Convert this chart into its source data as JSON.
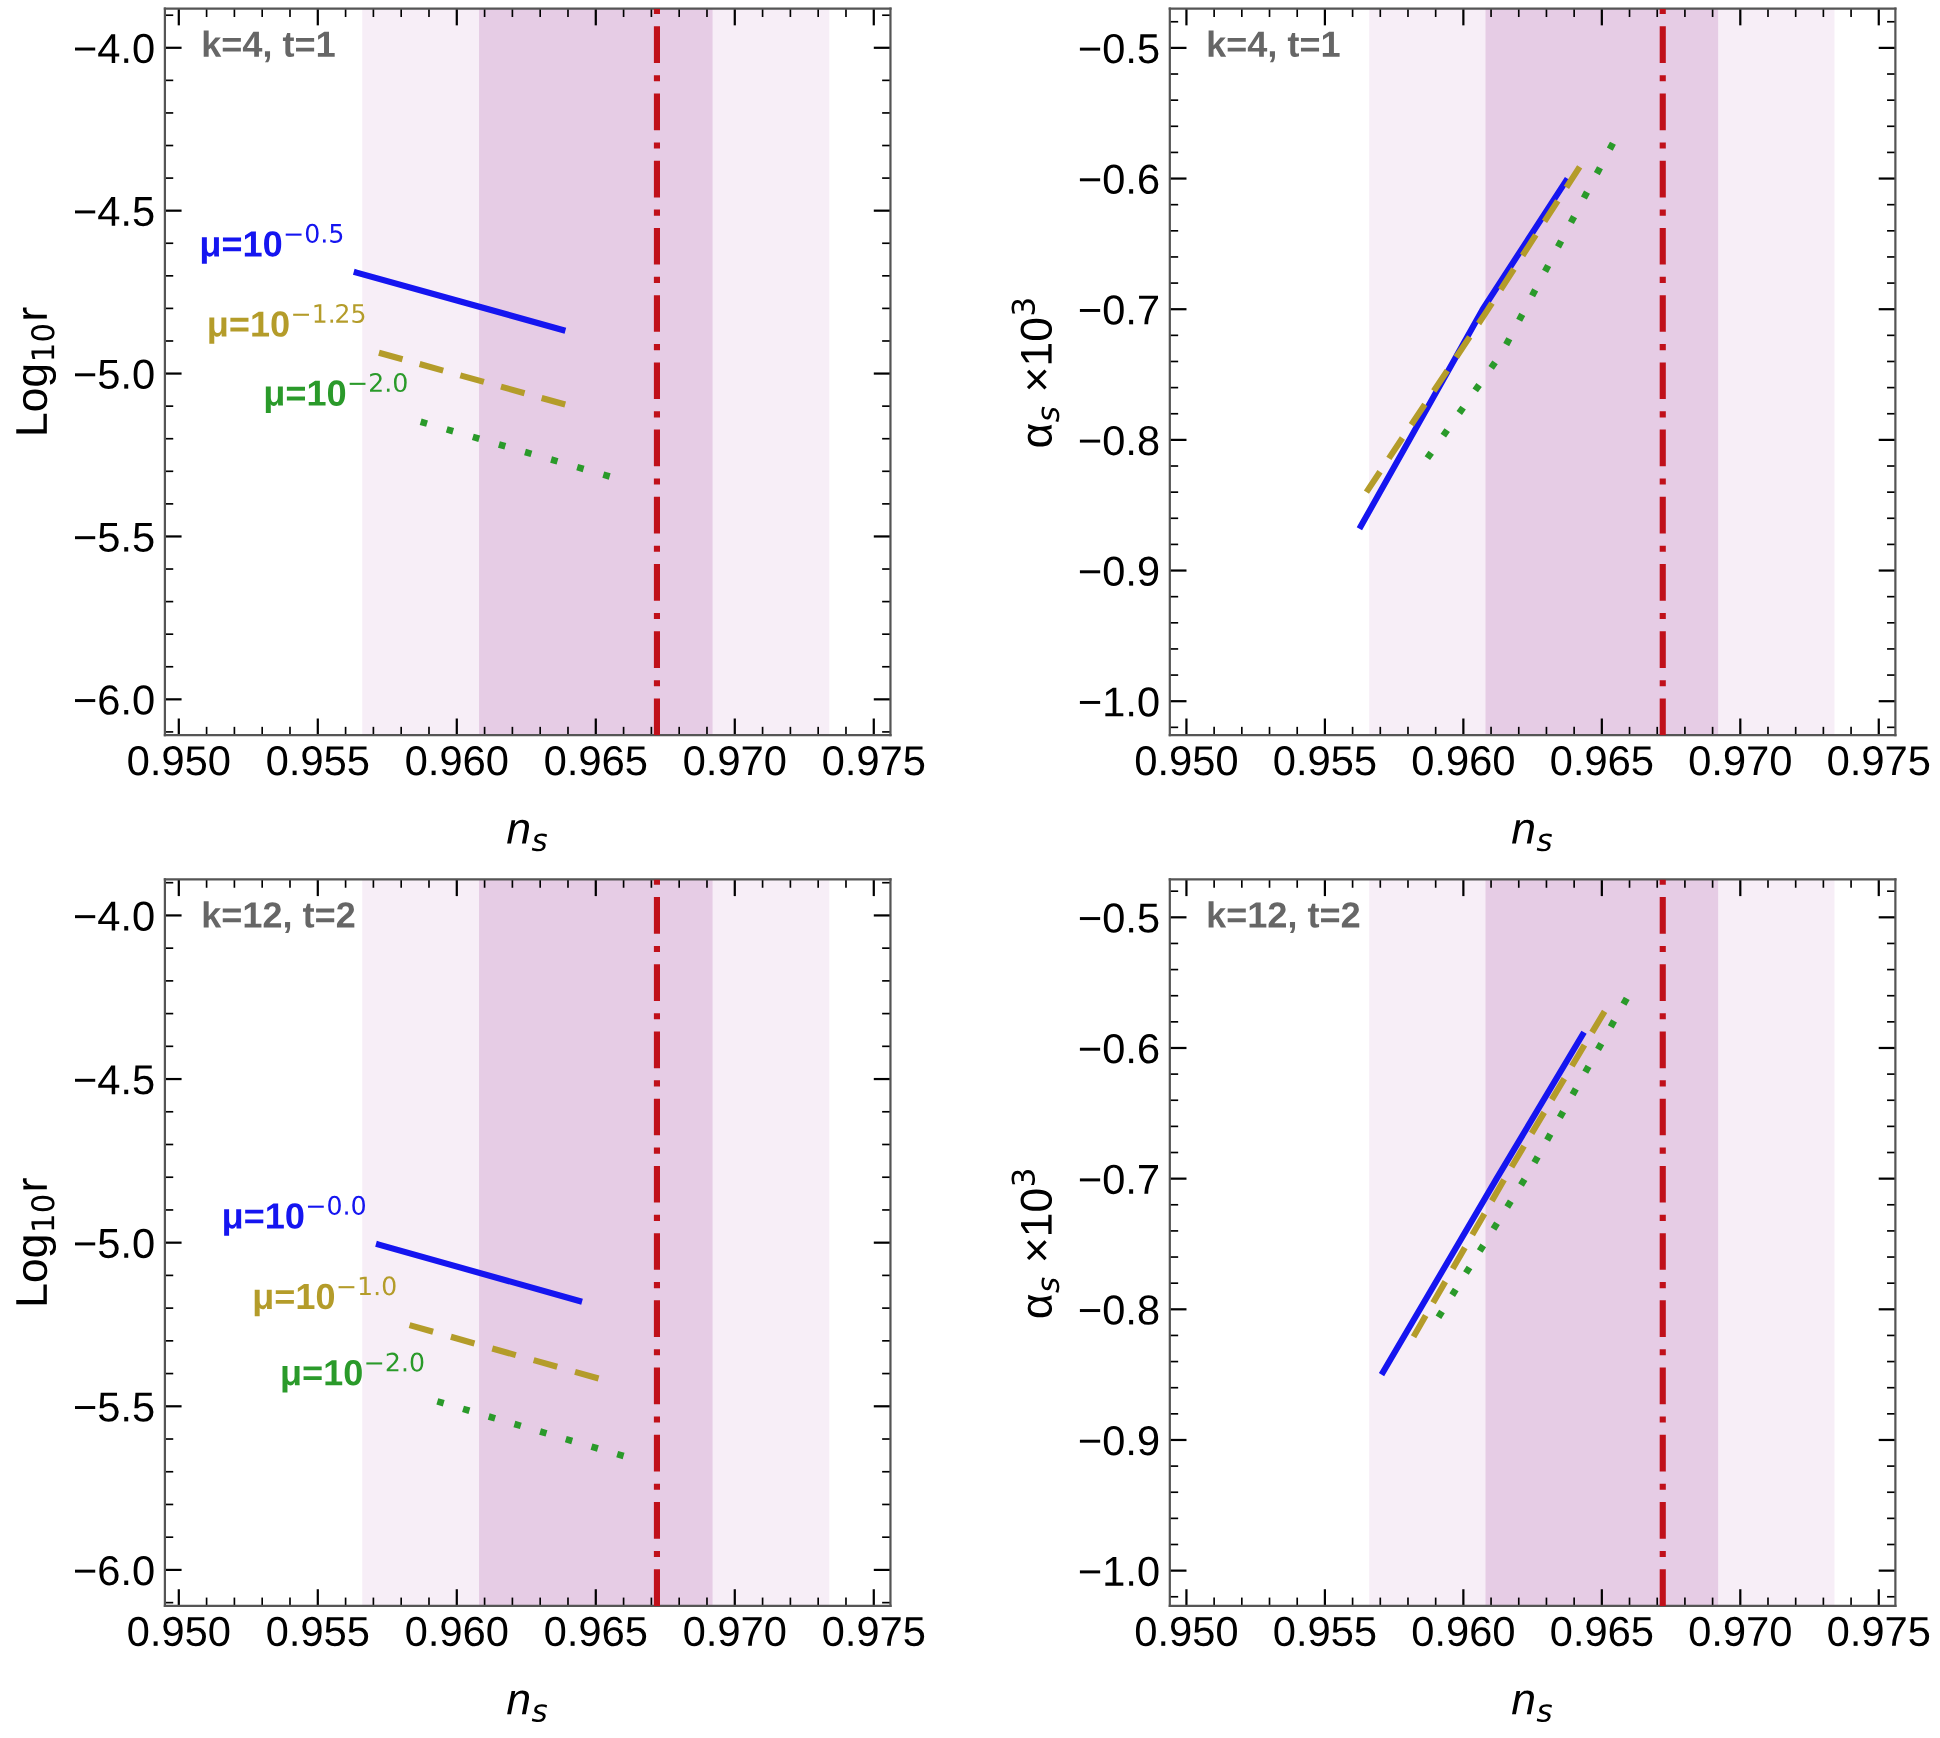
{
  "chart_data": [
    {
      "type": "line",
      "xlabel": "n$_{s}$",
      "ylabel": "Log$_{10}$r",
      "annotations": [
        "k=4, t=1"
      ],
      "xlim": [
        0.9495,
        0.9756
      ],
      "ylim": [
        -6.11,
        -3.88
      ],
      "xticks": [
        {
          "value": 0.95,
          "label": "0.950"
        },
        {
          "value": 0.955,
          "label": "0.955"
        },
        {
          "value": 0.96,
          "label": "0.960"
        },
        {
          "value": 0.965,
          "label": "0.965"
        },
        {
          "value": 0.97,
          "label": "0.970"
        },
        {
          "value": 0.975,
          "label": "0.975"
        }
      ],
      "yticks": [
        {
          "value": -4.0,
          "label": "−4.0"
        },
        {
          "value": -4.5,
          "label": "−4.5"
        },
        {
          "value": -5.0,
          "label": "−5.0"
        },
        {
          "value": -5.5,
          "label": "−5.5"
        },
        {
          "value": -6.0,
          "label": "−6.0"
        }
      ],
      "grid": false,
      "legend": false,
      "bands": [
        {
          "axis": "x",
          "from": 0.9566,
          "to": 0.9734,
          "color": "#f7eef7"
        },
        {
          "axis": "x",
          "from": 0.9608,
          "to": 0.9692,
          "color": "#e6cce5"
        }
      ],
      "ref_lines": [
        {
          "axis": "x",
          "value": 0.9672,
          "color": "#c0101a",
          "line_style": "dashdot"
        }
      ],
      "series": [
        {
          "name": "μ=10$^{−0.5}$",
          "color": "#1515f0",
          "line_style": "solid",
          "x": [
            0.9564,
            0.9601,
            0.9638
          ],
          "values": [
            -4.69,
            -4.778,
            -4.866
          ]
        },
        {
          "name": "μ=10$^{−1.25}$",
          "color": "#b49c2a",
          "line_style": "dashed",
          "x": [
            0.9572,
            0.9639
          ],
          "values": [
            -4.936,
            -5.095
          ]
        },
        {
          "name": "μ=10$^{−2.0}$",
          "color": "#2a9a2a",
          "line_style": "dotted",
          "x": [
            0.9587,
            0.9655
          ],
          "values": [
            -5.148,
            -5.316
          ]
        }
      ]
    },
    {
      "type": "line",
      "xlabel": "n$_{s}$",
      "ylabel": "α$_{s}$ ×10$^{3}$",
      "annotations": [
        "k=4, t=1"
      ],
      "xlim": [
        0.9494,
        0.9756
      ],
      "ylim": [
        -1.026,
        -0.47
      ],
      "xticks": [
        {
          "value": 0.95,
          "label": "0.950"
        },
        {
          "value": 0.955,
          "label": "0.955"
        },
        {
          "value": 0.96,
          "label": "0.960"
        },
        {
          "value": 0.965,
          "label": "0.965"
        },
        {
          "value": 0.97,
          "label": "0.970"
        },
        {
          "value": 0.975,
          "label": "0.975"
        }
      ],
      "yticks": [
        {
          "value": -0.5,
          "label": "−0.5"
        },
        {
          "value": -0.6,
          "label": "−0.6"
        },
        {
          "value": -0.7,
          "label": "−0.7"
        },
        {
          "value": -0.8,
          "label": "−0.8"
        },
        {
          "value": -0.9,
          "label": "−0.9"
        },
        {
          "value": -1.0,
          "label": "−1.0"
        }
      ],
      "grid": false,
      "legend": false,
      "bands": [
        {
          "axis": "x",
          "from": 0.9566,
          "to": 0.9734,
          "color": "#f7eef7"
        },
        {
          "axis": "x",
          "from": 0.9608,
          "to": 0.9692,
          "color": "#e6cce5"
        }
      ],
      "ref_lines": [
        {
          "axis": "x",
          "value": 0.9672,
          "color": "#c0101a",
          "line_style": "dashdot"
        }
      ],
      "series": [
        {
          "color": "#1515f0",
          "line_style": "solid",
          "x": [
            0.9563,
            0.9607,
            0.9637
          ],
          "values": [
            -0.866,
            -0.7,
            -0.602
          ]
        },
        {
          "color": "#b49c2a",
          "line_style": "dashed",
          "x": [
            0.9565,
            0.9608,
            0.9642
          ],
          "values": [
            -0.84,
            -0.703,
            -0.591
          ]
        },
        {
          "color": "#2a9a2a",
          "line_style": "dotted",
          "x": [
            0.9587,
            0.9614,
            0.9654
          ],
          "values": [
            -0.814,
            -0.733,
            -0.573
          ]
        }
      ]
    },
    {
      "type": "line",
      "xlabel": "n$_{s}$",
      "ylabel": "Log$_{10}$r",
      "annotations": [
        "k=12, t=2"
      ],
      "xlim": [
        0.9495,
        0.9756
      ],
      "ylim": [
        -6.11,
        -3.89
      ],
      "xticks": [
        {
          "value": 0.95,
          "label": "0.950"
        },
        {
          "value": 0.955,
          "label": "0.955"
        },
        {
          "value": 0.96,
          "label": "0.960"
        },
        {
          "value": 0.965,
          "label": "0.965"
        },
        {
          "value": 0.97,
          "label": "0.970"
        },
        {
          "value": 0.975,
          "label": "0.975"
        }
      ],
      "yticks": [
        {
          "value": -4.0,
          "label": "−4.0"
        },
        {
          "value": -4.5,
          "label": "−4.5"
        },
        {
          "value": -5.0,
          "label": "−5.0"
        },
        {
          "value": -5.5,
          "label": "−5.5"
        },
        {
          "value": -6.0,
          "label": "−6.0"
        }
      ],
      "grid": false,
      "legend": false,
      "bands": [
        {
          "axis": "x",
          "from": 0.9566,
          "to": 0.9734,
          "color": "#f7eef7"
        },
        {
          "axis": "x",
          "from": 0.9608,
          "to": 0.9692,
          "color": "#e6cce5"
        }
      ],
      "ref_lines": [
        {
          "axis": "x",
          "value": 0.9672,
          "color": "#c0101a",
          "line_style": "dashdot"
        }
      ],
      "series": [
        {
          "name": "μ=10$^{−0.0}$",
          "color": "#1515f0",
          "line_style": "solid",
          "x": [
            0.9572,
            0.9644
          ],
          "values": [
            -5.006,
            -5.178
          ]
        },
        {
          "name": "μ=10$^{−1.0}$",
          "color": "#b49c2a",
          "line_style": "dashed",
          "x": [
            0.9583,
            0.9651
          ],
          "values": [
            -5.252,
            -5.415
          ]
        },
        {
          "name": "μ=10$^{−2.0}$",
          "color": "#2a9a2a",
          "line_style": "dotted",
          "x": [
            0.9593,
            0.966
          ],
          "values": [
            -5.485,
            -5.652
          ]
        }
      ]
    },
    {
      "type": "line",
      "xlabel": "n$_{s}$",
      "ylabel": "α$_{s}$ ×10$^{3}$",
      "annotations": [
        "k=12, t=2"
      ],
      "xlim": [
        0.9494,
        0.9756
      ],
      "ylim": [
        -1.027,
        -0.471
      ],
      "xticks": [
        {
          "value": 0.95,
          "label": "0.950"
        },
        {
          "value": 0.955,
          "label": "0.955"
        },
        {
          "value": 0.96,
          "label": "0.960"
        },
        {
          "value": 0.965,
          "label": "0.965"
        },
        {
          "value": 0.97,
          "label": "0.970"
        },
        {
          "value": 0.975,
          "label": "0.975"
        }
      ],
      "yticks": [
        {
          "value": -0.5,
          "label": "−0.5"
        },
        {
          "value": -0.6,
          "label": "−0.6"
        },
        {
          "value": -0.7,
          "label": "−0.7"
        },
        {
          "value": -0.8,
          "label": "−0.8"
        },
        {
          "value": -0.9,
          "label": "−0.9"
        },
        {
          "value": -1.0,
          "label": "−1.0"
        }
      ],
      "grid": false,
      "legend": false,
      "bands": [
        {
          "axis": "x",
          "from": 0.9566,
          "to": 0.9734,
          "color": "#f7eef7"
        },
        {
          "axis": "x",
          "from": 0.9608,
          "to": 0.9692,
          "color": "#e6cce5"
        }
      ],
      "ref_lines": [
        {
          "axis": "x",
          "value": 0.9672,
          "color": "#c0101a",
          "line_style": "dashdot"
        }
      ],
      "series": [
        {
          "color": "#1515f0",
          "line_style": "solid",
          "x": [
            0.9571,
            0.9612,
            0.9643
          ],
          "values": [
            -0.848,
            -0.7,
            -0.59
          ]
        },
        {
          "color": "#b49c2a",
          "line_style": "dashed",
          "x": [
            0.9582,
            0.9616,
            0.9651
          ],
          "values": [
            -0.821,
            -0.696,
            -0.572
          ]
        },
        {
          "color": "#2a9a2a",
          "line_style": "dotted",
          "x": [
            0.9591,
            0.9624,
            0.9659
          ],
          "values": [
            -0.806,
            -0.694,
            -0.562
          ]
        }
      ]
    }
  ]
}
